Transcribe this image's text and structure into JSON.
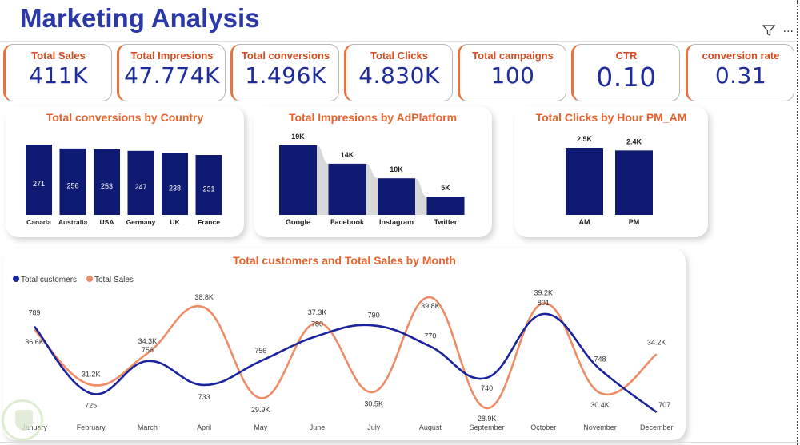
{
  "header": {
    "title": "Marketing Analysis",
    "filter_icon": "filter-icon",
    "more_icon": "more-options-icon"
  },
  "colors": {
    "title": "#2b39a8",
    "kpi_label": "#d44a1e",
    "kpi_value": "#1f2d9a",
    "accent": "#e8733d",
    "bar": "#0f1a73",
    "customers_line": "#1a249c",
    "sales_line": "#ee8c65",
    "chart_title": "#e8622c"
  },
  "kpis": [
    {
      "label": "Total Sales",
      "value": "411K"
    },
    {
      "label": "Total Impresions",
      "value": "47.774K"
    },
    {
      "label": "Total conversions",
      "value": "1.496K"
    },
    {
      "label": "Total Clicks",
      "value": "4.830K"
    },
    {
      "label": "Total campaigns",
      "value": "100"
    },
    {
      "label": "CTR",
      "value": "0.10"
    },
    {
      "label": "conversion rate",
      "value": "0.31"
    }
  ],
  "chart_data": [
    {
      "type": "bar",
      "title": "Total conversions by Country",
      "categories": [
        "Canada",
        "Australia",
        "USA",
        "Germany",
        "UK",
        "France"
      ],
      "values": [
        271,
        256,
        253,
        247,
        238,
        231
      ],
      "labels": [
        "271",
        "256",
        "253",
        "247",
        "238",
        "231"
      ],
      "label_position": "inside",
      "xlabel": "",
      "ylabel": "",
      "ylim": [
        0,
        271
      ],
      "grid": false
    },
    {
      "type": "bar",
      "title": "Total Impresions by AdPlatform",
      "categories": [
        "Google",
        "Facebook",
        "Instagram",
        "Twitter"
      ],
      "values": [
        19,
        14,
        10,
        5
      ],
      "labels": [
        "19K",
        "14K",
        "10K",
        "5K"
      ],
      "unit": "K",
      "label_position": "above",
      "ribbon": true,
      "xlabel": "",
      "ylabel": "",
      "ylim": [
        0,
        19
      ],
      "grid": false
    },
    {
      "type": "bar",
      "title": "Total Clicks by Hour PM_AM",
      "categories": [
        "AM",
        "PM"
      ],
      "values": [
        2.5,
        2.4
      ],
      "labels": [
        "2.5K",
        "2.4K"
      ],
      "unit": "K",
      "label_position": "above",
      "xlabel": "",
      "ylabel": "",
      "ylim": [
        0,
        2.5
      ],
      "grid": false
    },
    {
      "type": "line",
      "title": "Total customers and Total Sales by Month",
      "legend_position": "top-left",
      "x": [
        "January",
        "February",
        "March",
        "April",
        "May",
        "June",
        "July",
        "August",
        "September",
        "October",
        "November",
        "December"
      ],
      "series": [
        {
          "name": "Total customers",
          "values": [
            789,
            725,
            756,
            733,
            756,
            780,
            790,
            770,
            740,
            801,
            748,
            707
          ],
          "labels": [
            "789",
            "725",
            "756",
            "733",
            "756",
            "780",
            "790",
            "770",
            "740",
            "801",
            "748",
            "707"
          ]
        },
        {
          "name": "Total Sales",
          "values": [
            36.6,
            31.2,
            34.3,
            38.8,
            29.9,
            37.3,
            30.5,
            39.8,
            28.9,
            39.2,
            30.4,
            34.2
          ],
          "labels": [
            "36.6K",
            "31.2K",
            "34.3K",
            "38.8K",
            "29.9K",
            "37.3K",
            "30.5K",
            "39.8K",
            "28.9K",
            "39.2K",
            "30.4K",
            "34.2K"
          ],
          "unit": "K"
        }
      ],
      "xlabel": "",
      "ylabel": "",
      "grid": false
    }
  ]
}
